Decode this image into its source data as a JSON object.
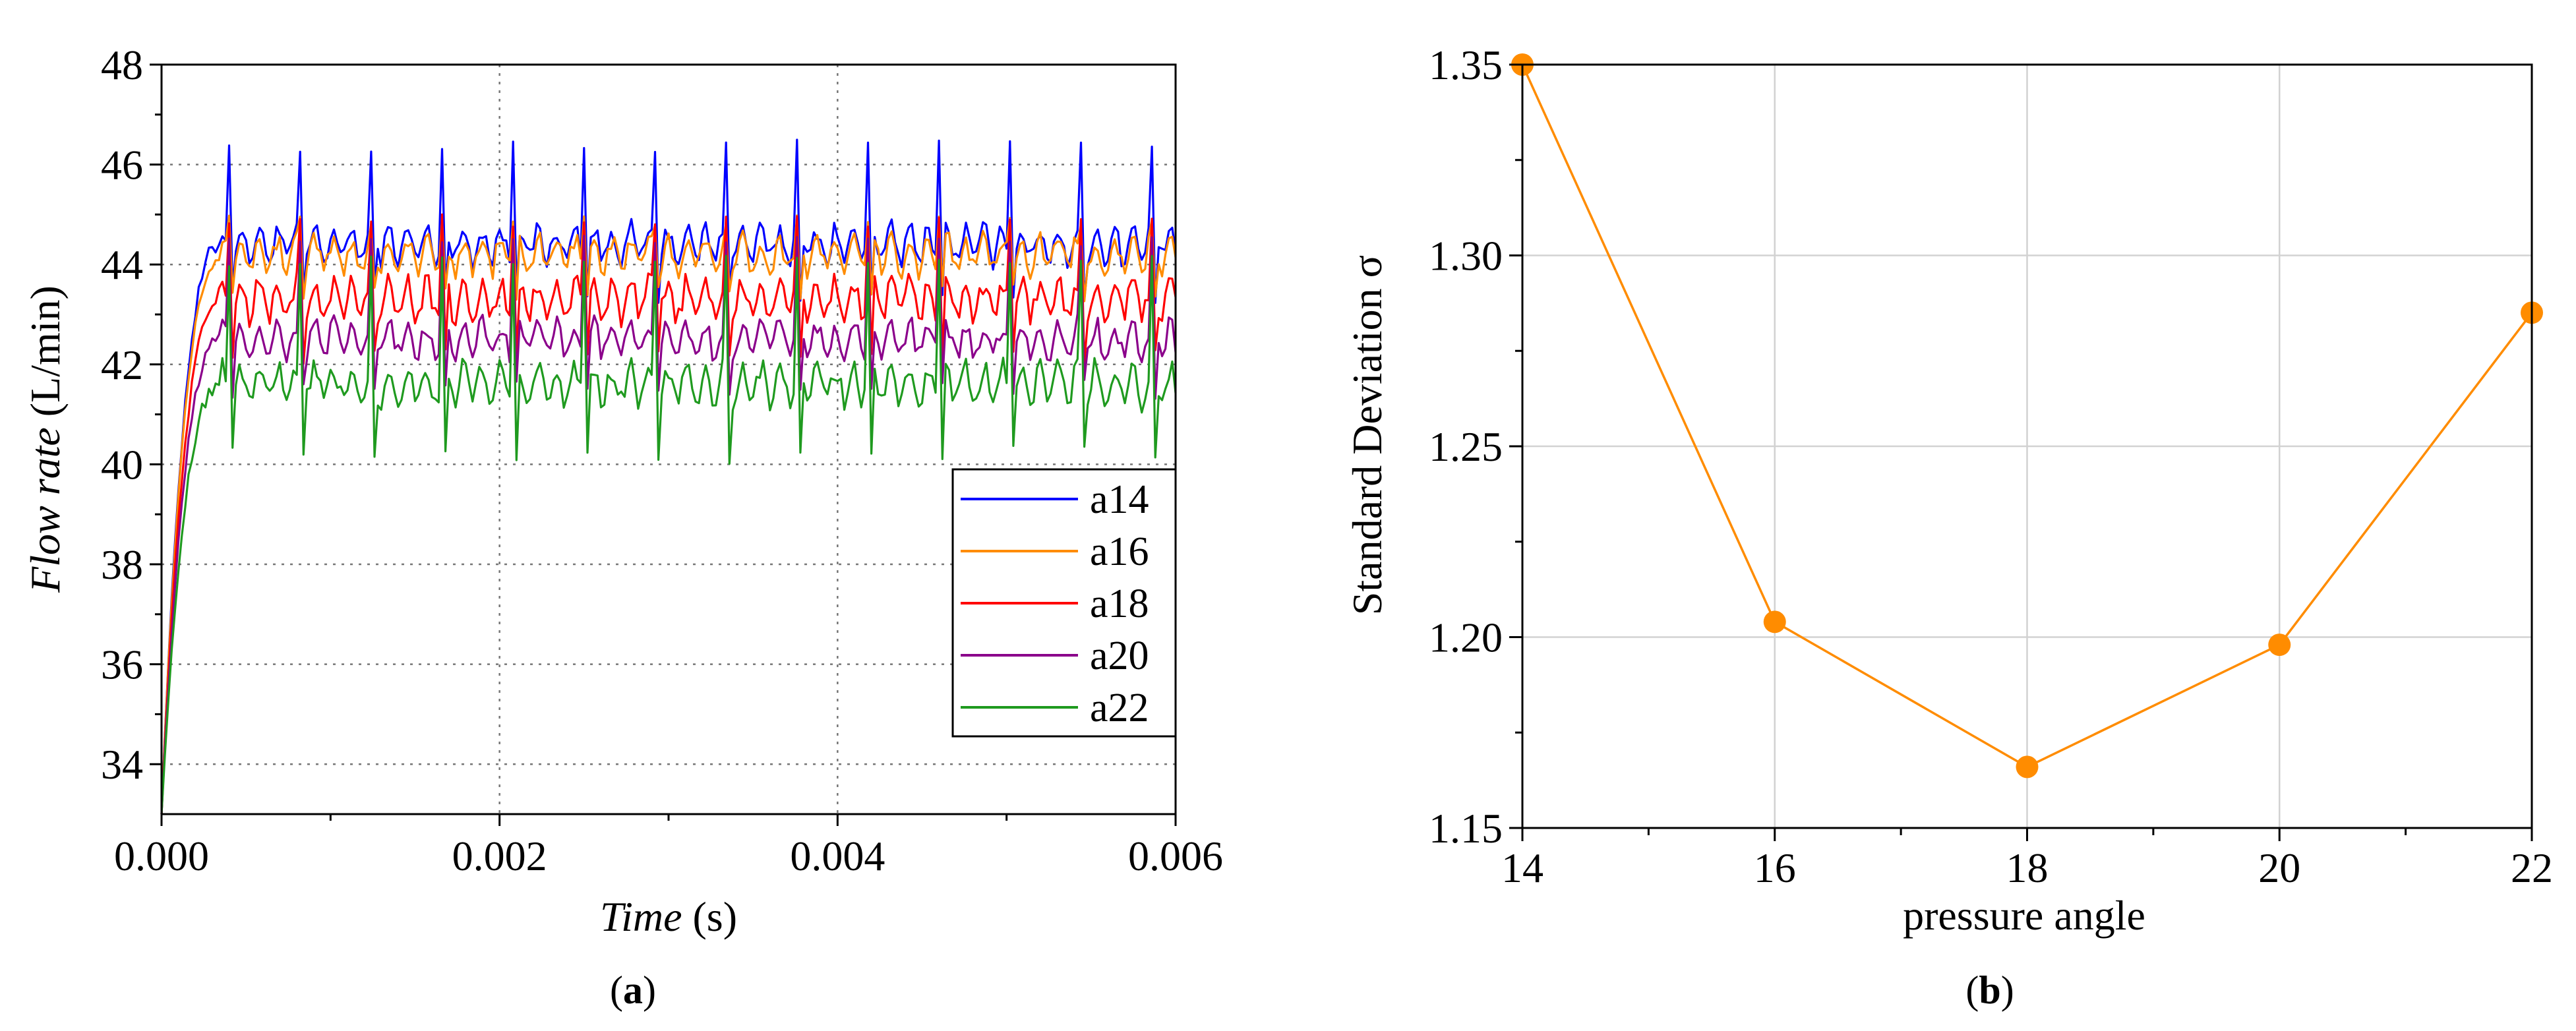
{
  "chart_data": [
    {
      "type": "line",
      "panel_label": "a",
      "xlabel_italic": "Time",
      "xlabel_unit": " (s)",
      "ylabel_italic": "Flow rate",
      "ylabel_unit": " (L/min)",
      "xlim": [
        0,
        0.006
      ],
      "ylim": [
        33,
        48
      ],
      "xticks": [
        0,
        0.002,
        0.004,
        0.006
      ],
      "xtick_labels": [
        "0.000",
        "0.002",
        "0.004",
        "0.006"
      ],
      "yticks": [
        34,
        36,
        38,
        40,
        42,
        44,
        46,
        48
      ],
      "ytick_labels": [
        "34",
        "36",
        "38",
        "40",
        "42",
        "44",
        "46",
        "48"
      ],
      "grid": "dotted",
      "legend_position": "bottom-right",
      "x_rise_end": 0.00036,
      "ripple_period": 0.00042,
      "samples": 300,
      "series": [
        {
          "name": "a14",
          "color": "#0000ff",
          "start": 33.0,
          "mean": 44.4,
          "amp": 0.45,
          "peak": 46.5,
          "min": 43.6
        },
        {
          "name": "a16",
          "color": "#ff8c00",
          "start": 33.0,
          "mean": 44.2,
          "amp": 0.45,
          "peak": 45.0,
          "min": 43.6
        },
        {
          "name": "a18",
          "color": "#ff0000",
          "start": 33.0,
          "mean": 43.3,
          "amp": 0.5,
          "peak": 45.0,
          "min": 42.4
        },
        {
          "name": "a20",
          "color": "#8b008b",
          "start": 33.0,
          "mean": 42.5,
          "amp": 0.45,
          "peak": 44.6,
          "min": 41.7
        },
        {
          "name": "a22",
          "color": "#1f9a1f",
          "start": 33.0,
          "mean": 41.6,
          "amp": 0.5,
          "peak": 44.2,
          "min": 40.4
        }
      ]
    },
    {
      "type": "line",
      "panel_label": "b",
      "xlabel": "pressure angle",
      "ylabel": "Standard Deviation σ",
      "xlim": [
        14,
        22
      ],
      "ylim": [
        1.15,
        1.35
      ],
      "xticks": [
        14,
        16,
        18,
        20,
        22
      ],
      "xtick_labels": [
        "14",
        "16",
        "18",
        "20",
        "22"
      ],
      "yticks": [
        1.15,
        1.2,
        1.25,
        1.3,
        1.35
      ],
      "ytick_labels": [
        "1.15",
        "1.20",
        "1.25",
        "1.30",
        "1.35"
      ],
      "grid": "solid",
      "color": "#ff8c00",
      "x": [
        14,
        16,
        18,
        20,
        22
      ],
      "y": [
        1.35,
        1.204,
        1.166,
        1.198,
        1.285
      ]
    }
  ]
}
